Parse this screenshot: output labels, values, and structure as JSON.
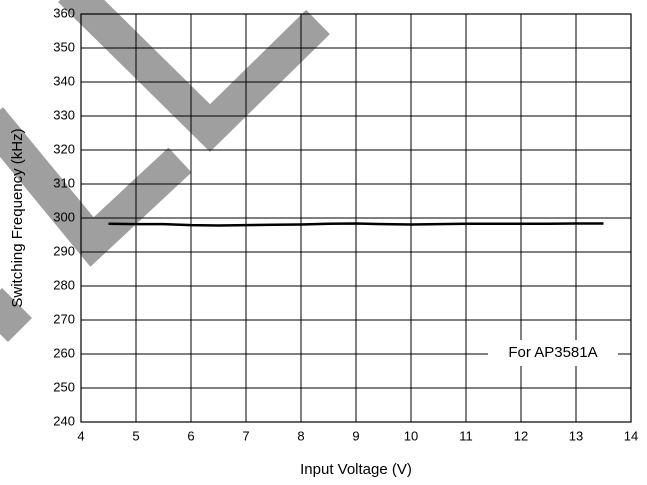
{
  "chart_data": {
    "type": "line",
    "xlabel": "Input Voltage (V)",
    "ylabel": "Switching Frequency (kHz)",
    "annotation": "For AP3581A",
    "x": [
      4.5,
      5,
      5.5,
      6,
      6.5,
      7,
      7.5,
      8,
      8.5,
      9,
      9.5,
      10,
      10.5,
      11,
      11.5,
      12,
      12.5,
      13,
      13.5
    ],
    "series": [
      {
        "color": "#000000",
        "values": [
          298.3,
          298.2,
          298.2,
          297.9,
          297.8,
          297.9,
          298.0,
          298.1,
          298.3,
          298.4,
          298.2,
          298.1,
          298.2,
          298.3,
          298.3,
          298.3,
          298.3,
          298.4,
          298.4
        ]
      }
    ],
    "xlim": [
      4,
      14
    ],
    "xticks": [
      4,
      5,
      6,
      7,
      8,
      9,
      10,
      11,
      12,
      13,
      14
    ],
    "ylim": [
      240,
      360
    ],
    "yticks": [
      240,
      250,
      260,
      270,
      280,
      290,
      300,
      310,
      320,
      330,
      340,
      350,
      360
    ],
    "grid": true
  }
}
